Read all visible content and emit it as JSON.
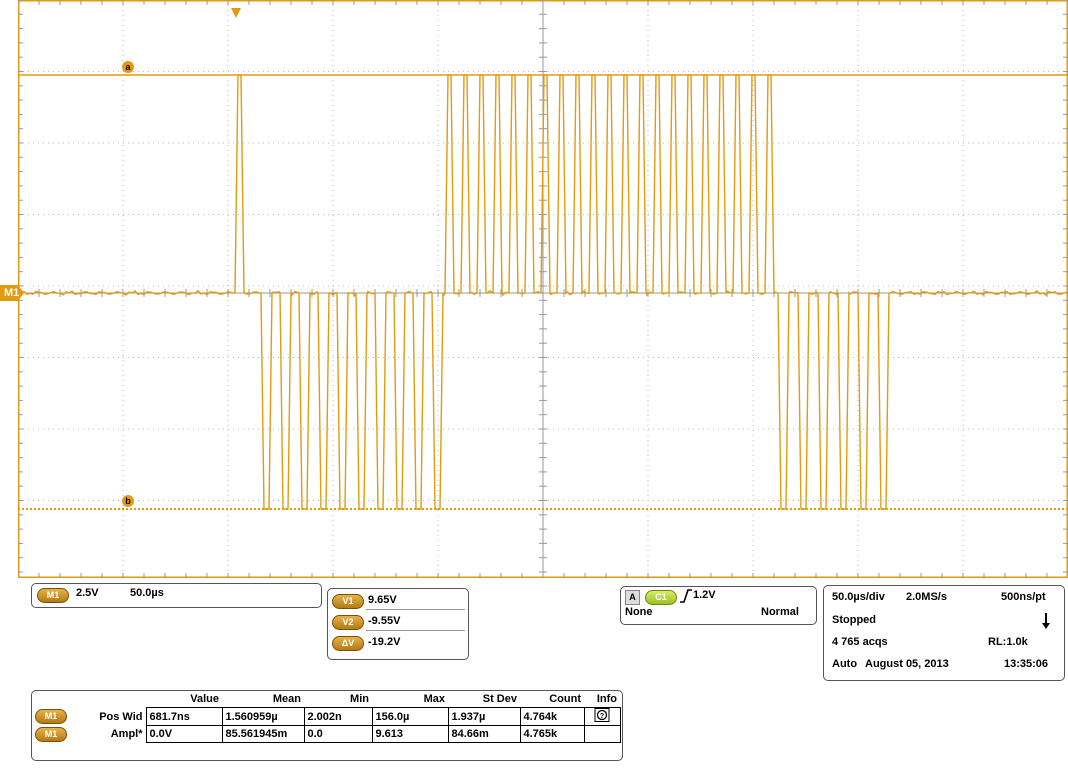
{
  "channel_marker": "M1",
  "cursors": {
    "a_label": "a",
    "b_label": "b"
  },
  "colors": {
    "trace": "#e39a10",
    "grid": "#b9b9b9",
    "frame": "#e39a10",
    "pill": "#c98b1d",
    "trigger_pill": "#b7d43a"
  },
  "channel_box": {
    "channel": "M1",
    "volts_per_div": "2.5V",
    "time_per_div": "50.0µs"
  },
  "cursor_readout": {
    "rows": [
      {
        "label": "V1",
        "value": "9.65V"
      },
      {
        "label": "V2",
        "value": "-9.55V"
      },
      {
        "label": "ΔV",
        "value": "-19.2V"
      }
    ]
  },
  "trigger": {
    "source_tag": "A",
    "channel": "C1",
    "slope_icon": "rising-edge-icon",
    "level": "1.2V",
    "coupling": "None",
    "mode": "Normal"
  },
  "acquisition": {
    "time_div": "50.0µs/div",
    "sample_rate": "2.0MS/s",
    "resolution": "500ns/pt",
    "state": "Stopped",
    "acqs": "4 765 acqs",
    "record_length": "RL:1.0k",
    "mode": "Auto",
    "date": "August 05, 2013",
    "time": "13:35:06"
  },
  "measurements": {
    "headers": [
      "Value",
      "Mean",
      "Min",
      "Max",
      "St Dev",
      "Count",
      "Info"
    ],
    "rows": [
      {
        "channel": "M1",
        "name": "Pos Wid",
        "value": "681.7ns",
        "mean": "1.560959µ",
        "min": "2.002n",
        "max": "156.0µ",
        "stdev": "1.937µ",
        "count": "4.764k",
        "info_icon": "info-icon"
      },
      {
        "channel": "M1",
        "name": "Ampl*",
        "value": "0.0V",
        "mean": "85.561945m",
        "min": "0.0",
        "max": "9.613",
        "stdev": "84.66m",
        "count": "4.765k",
        "info_icon": ""
      }
    ]
  }
}
